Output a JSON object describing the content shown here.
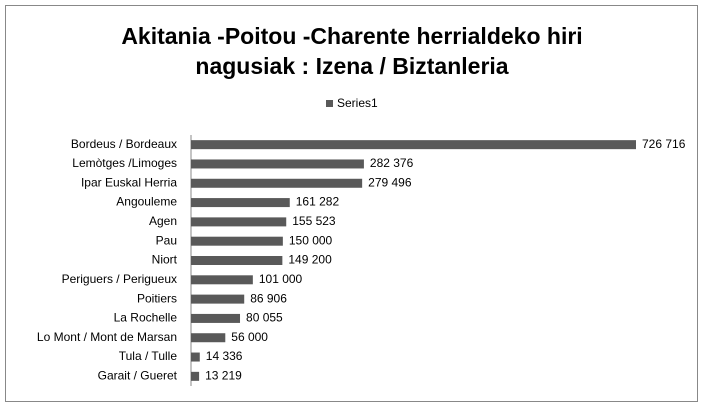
{
  "chart_data": {
    "type": "bar",
    "orientation": "horizontal",
    "title": [
      "Akitania -Poitou -Charente herrialdeko hiri",
      "nagusiak : Izena / Biztanleria"
    ],
    "categories": [
      "Bordeus / Bordeaux",
      "Lemòtges /Limoges",
      "Ipar Euskal Herria",
      "Angouleme",
      "Agen",
      "Pau",
      "Niort",
      "Periguers / Perigueux",
      "Poitiers",
      "La Rochelle",
      "Lo Mont / Mont de Marsan",
      "Tula / Tulle",
      "Garait / Gueret"
    ],
    "series": [
      {
        "name": "Series1",
        "color": "#595959",
        "values": [
          726716,
          282376,
          279496,
          161282,
          155523,
          150000,
          149200,
          101000,
          86906,
          80055,
          56000,
          14336,
          13219
        ],
        "value_labels": [
          "726 716",
          "282 376",
          "279 496",
          "161 282",
          "155 523",
          "150 000",
          "149 200",
          "101 000",
          "86 906",
          "80 055",
          "56 000",
          "14 336",
          "13 219"
        ]
      }
    ],
    "legend": "top"
  }
}
